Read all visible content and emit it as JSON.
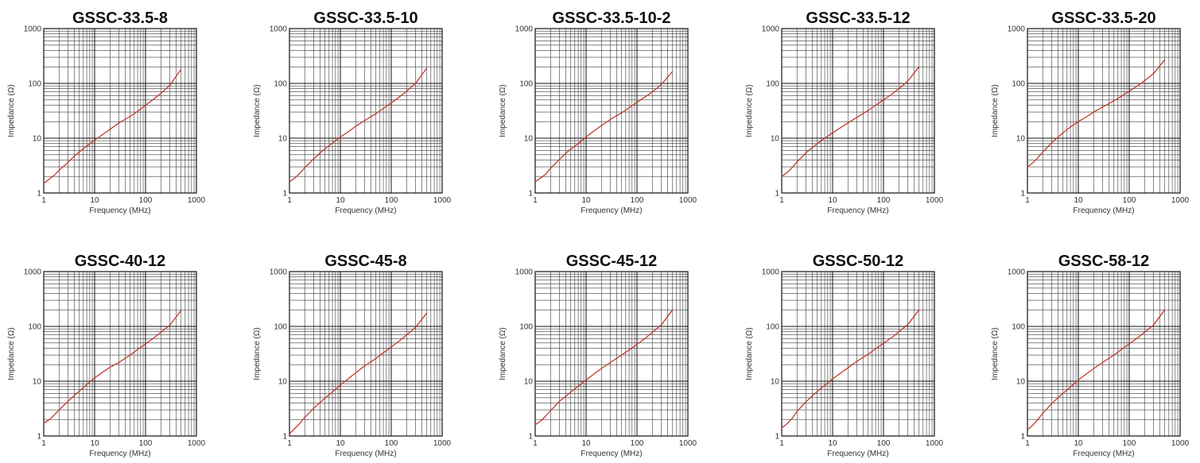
{
  "chart_data": [
    {
      "type": "line",
      "title": "GSSC-33.5-8",
      "xlabel": "Frequency (MHz)",
      "ylabel": "Impedance (Ω)",
      "xscale": "log",
      "yscale": "log",
      "xlim": [
        1,
        1000
      ],
      "ylim": [
        1,
        1000
      ],
      "grid": true,
      "xticks": [
        "1",
        "10",
        "100",
        "1000"
      ],
      "yticks": [
        "1",
        "10",
        "100",
        "1000"
      ],
      "series": [
        {
          "color": "#c0392b",
          "x": [
            1,
            1.3,
            1.6,
            2,
            3,
            4,
            5,
            7,
            10,
            15,
            20,
            30,
            50,
            70,
            100,
            150,
            200,
            300,
            500
          ],
          "y": [
            1.5,
            1.8,
            2.1,
            2.6,
            3.6,
            4.7,
            5.6,
            7.2,
            9.2,
            12,
            14.5,
            19,
            25,
            31,
            40,
            53,
            66,
            92,
            180
          ]
        }
      ]
    },
    {
      "type": "line",
      "title": "GSSC-33.5-10",
      "xlabel": "Frequency (MHz)",
      "ylabel": "Impedance (Ω)",
      "xscale": "log",
      "yscale": "log",
      "xlim": [
        1,
        1000
      ],
      "ylim": [
        1,
        1000
      ],
      "grid": true,
      "xticks": [
        "1",
        "10",
        "100",
        "1000"
      ],
      "yticks": [
        "1",
        "10",
        "100",
        "1000"
      ],
      "series": [
        {
          "color": "#c0392b",
          "x": [
            1,
            1.3,
            1.6,
            2,
            3,
            4,
            5,
            7,
            10,
            15,
            20,
            30,
            50,
            70,
            100,
            150,
            200,
            300,
            500
          ],
          "y": [
            1.6,
            1.9,
            2.3,
            2.9,
            4.2,
            5.4,
            6.4,
            8.2,
            10.5,
            13.5,
            16.5,
            21,
            28,
            35,
            44,
            58,
            72,
            100,
            190
          ]
        }
      ]
    },
    {
      "type": "line",
      "title": "GSSC-33.5-10-2",
      "xlabel": "Frequency (MHz)",
      "ylabel": "Impedance (Ω)",
      "xscale": "log",
      "yscale": "log",
      "xlim": [
        1,
        1000
      ],
      "ylim": [
        1,
        1000
      ],
      "grid": true,
      "xticks": [
        "1",
        "10",
        "100",
        "1000"
      ],
      "yticks": [
        "1",
        "10",
        "100",
        "1000"
      ],
      "series": [
        {
          "color": "#c0392b",
          "x": [
            1,
            1.3,
            1.6,
            2,
            3,
            4,
            5,
            7,
            10,
            15,
            20,
            30,
            50,
            70,
            100,
            150,
            200,
            300,
            500
          ],
          "y": [
            1.6,
            1.9,
            2.2,
            2.8,
            4.1,
            5.3,
            6.3,
            8,
            10.5,
            14,
            17,
            22,
            29,
            36,
            45,
            58,
            70,
            95,
            165
          ]
        }
      ]
    },
    {
      "type": "line",
      "title": "GSSC-33.5-12",
      "xlabel": "Frequency (MHz)",
      "ylabel": "Impedance (Ω)",
      "xscale": "log",
      "yscale": "log",
      "xlim": [
        1,
        1000
      ],
      "ylim": [
        1,
        1000
      ],
      "grid": true,
      "xticks": [
        "1",
        "10",
        "100",
        "1000"
      ],
      "yticks": [
        "1",
        "10",
        "100",
        "1000"
      ],
      "series": [
        {
          "color": "#c0392b",
          "x": [
            1,
            1.3,
            1.6,
            2,
            3,
            4,
            5,
            7,
            10,
            15,
            20,
            30,
            50,
            70,
            100,
            150,
            200,
            300,
            500
          ],
          "y": [
            2,
            2.4,
            2.9,
            3.7,
            5.4,
            6.8,
            8,
            10,
            12.5,
            16,
            19,
            24,
            32,
            40,
            50,
            65,
            80,
            110,
            200
          ]
        }
      ]
    },
    {
      "type": "line",
      "title": "GSSC-33.5-20",
      "xlabel": "Frequency (MHz)",
      "ylabel": "Impedance (Ω)",
      "xscale": "log",
      "yscale": "log",
      "xlim": [
        1,
        1000
      ],
      "ylim": [
        1,
        1000
      ],
      "grid": true,
      "xticks": [
        "1",
        "10",
        "100",
        "1000"
      ],
      "yticks": [
        "1",
        "10",
        "100",
        "1000"
      ],
      "series": [
        {
          "color": "#c0392b",
          "x": [
            1,
            1.3,
            1.6,
            2,
            3,
            4,
            5,
            7,
            10,
            15,
            20,
            30,
            50,
            70,
            100,
            150,
            200,
            300,
            500
          ],
          "y": [
            3,
            3.6,
            4.4,
            5.6,
            8.3,
            10.5,
            12.5,
            16,
            20,
            25,
            30,
            37,
            48,
            58,
            72,
            92,
            112,
            150,
            270
          ]
        }
      ]
    },
    {
      "type": "line",
      "title": "GSSC-40-12",
      "xlabel": "Frequency (MHz)",
      "ylabel": "Impedance (Ω)",
      "xscale": "log",
      "yscale": "log",
      "xlim": [
        1,
        1000
      ],
      "ylim": [
        1,
        1000
      ],
      "grid": true,
      "xticks": [
        "1",
        "10",
        "100",
        "1000"
      ],
      "yticks": [
        "1",
        "10",
        "100",
        "1000"
      ],
      "series": [
        {
          "color": "#c0392b",
          "x": [
            1,
            1.3,
            1.6,
            2,
            3,
            4,
            5,
            7,
            10,
            15,
            20,
            30,
            50,
            70,
            100,
            150,
            200,
            300,
            500
          ],
          "y": [
            1.7,
            2,
            2.4,
            3,
            4.3,
            5.5,
            6.6,
            8.7,
            11.5,
            15,
            18,
            22,
            30,
            38,
            48,
            63,
            78,
            105,
            195
          ]
        }
      ]
    },
    {
      "type": "line",
      "title": "GSSC-45-8",
      "xlabel": "Frequency (MHz)",
      "ylabel": "Impedance (Ω)",
      "xscale": "log",
      "yscale": "log",
      "xlim": [
        1,
        1000
      ],
      "ylim": [
        1,
        1000
      ],
      "grid": true,
      "xticks": [
        "1",
        "10",
        "100",
        "1000"
      ],
      "yticks": [
        "1",
        "10",
        "100",
        "1000"
      ],
      "series": [
        {
          "color": "#c0392b",
          "x": [
            1,
            1.3,
            1.6,
            2,
            3,
            4,
            5,
            7,
            10,
            15,
            20,
            30,
            50,
            70,
            100,
            150,
            200,
            300,
            500
          ],
          "y": [
            1.1,
            1.4,
            1.7,
            2.2,
            3.2,
            4.1,
            4.9,
            6.4,
            8.5,
            11.5,
            14.2,
            19,
            26,
            33,
            42,
            56,
            70,
            96,
            175
          ]
        }
      ]
    },
    {
      "type": "line",
      "title": "GSSC-45-12",
      "xlabel": "Frequency (MHz)",
      "ylabel": "Impedance (Ω)",
      "xscale": "log",
      "yscale": "log",
      "xlim": [
        1,
        1000
      ],
      "ylim": [
        1,
        1000
      ],
      "grid": true,
      "xticks": [
        "1",
        "10",
        "100",
        "1000"
      ],
      "yticks": [
        "1",
        "10",
        "100",
        "1000"
      ],
      "series": [
        {
          "color": "#c0392b",
          "x": [
            1,
            1.3,
            1.6,
            2,
            3,
            4,
            5,
            7,
            10,
            15,
            20,
            30,
            50,
            70,
            100,
            150,
            200,
            300,
            500
          ],
          "y": [
            1.6,
            1.9,
            2.3,
            2.9,
            4.3,
            5.3,
            6.3,
            8.1,
            10.5,
            14,
            17,
            22,
            30,
            37,
            47,
            62,
            78,
            106,
            200
          ]
        }
      ]
    },
    {
      "type": "line",
      "title": "GSSC-50-12",
      "xlabel": "Frequency (MHz)",
      "ylabel": "Impedance (Ω)",
      "xscale": "log",
      "yscale": "log",
      "xlim": [
        1,
        1000
      ],
      "ylim": [
        1,
        1000
      ],
      "grid": true,
      "xticks": [
        "1",
        "10",
        "100",
        "1000"
      ],
      "yticks": [
        "1",
        "10",
        "100",
        "1000"
      ],
      "series": [
        {
          "color": "#c0392b",
          "x": [
            1,
            1.3,
            1.6,
            2,
            3,
            4,
            5,
            7,
            10,
            15,
            20,
            30,
            50,
            70,
            100,
            150,
            200,
            300,
            500
          ],
          "y": [
            1.4,
            1.7,
            2.1,
            2.8,
            4.2,
            5.4,
            6.5,
            8.4,
            11,
            14.5,
            17.5,
            23,
            31,
            39,
            49,
            64,
            80,
            108,
            200
          ]
        }
      ]
    },
    {
      "type": "line",
      "title": "GSSC-58-12",
      "xlabel": "Frequency (MHz)",
      "ylabel": "Impedance (Ω)",
      "xscale": "log",
      "yscale": "log",
      "xlim": [
        1,
        1000
      ],
      "ylim": [
        1,
        1000
      ],
      "grid": true,
      "xticks": [
        "1",
        "10",
        "100",
        "1000"
      ],
      "yticks": [
        "1",
        "10",
        "100",
        "1000"
      ],
      "series": [
        {
          "color": "#c0392b",
          "x": [
            1,
            1.3,
            1.6,
            2,
            3,
            4,
            5,
            7,
            10,
            15,
            20,
            30,
            50,
            70,
            100,
            150,
            200,
            300,
            500
          ],
          "y": [
            1.3,
            1.6,
            2,
            2.6,
            3.9,
            5,
            6,
            7.8,
            10.5,
            14,
            17,
            22,
            30,
            38,
            48,
            63,
            78,
            106,
            200
          ]
        }
      ]
    }
  ]
}
